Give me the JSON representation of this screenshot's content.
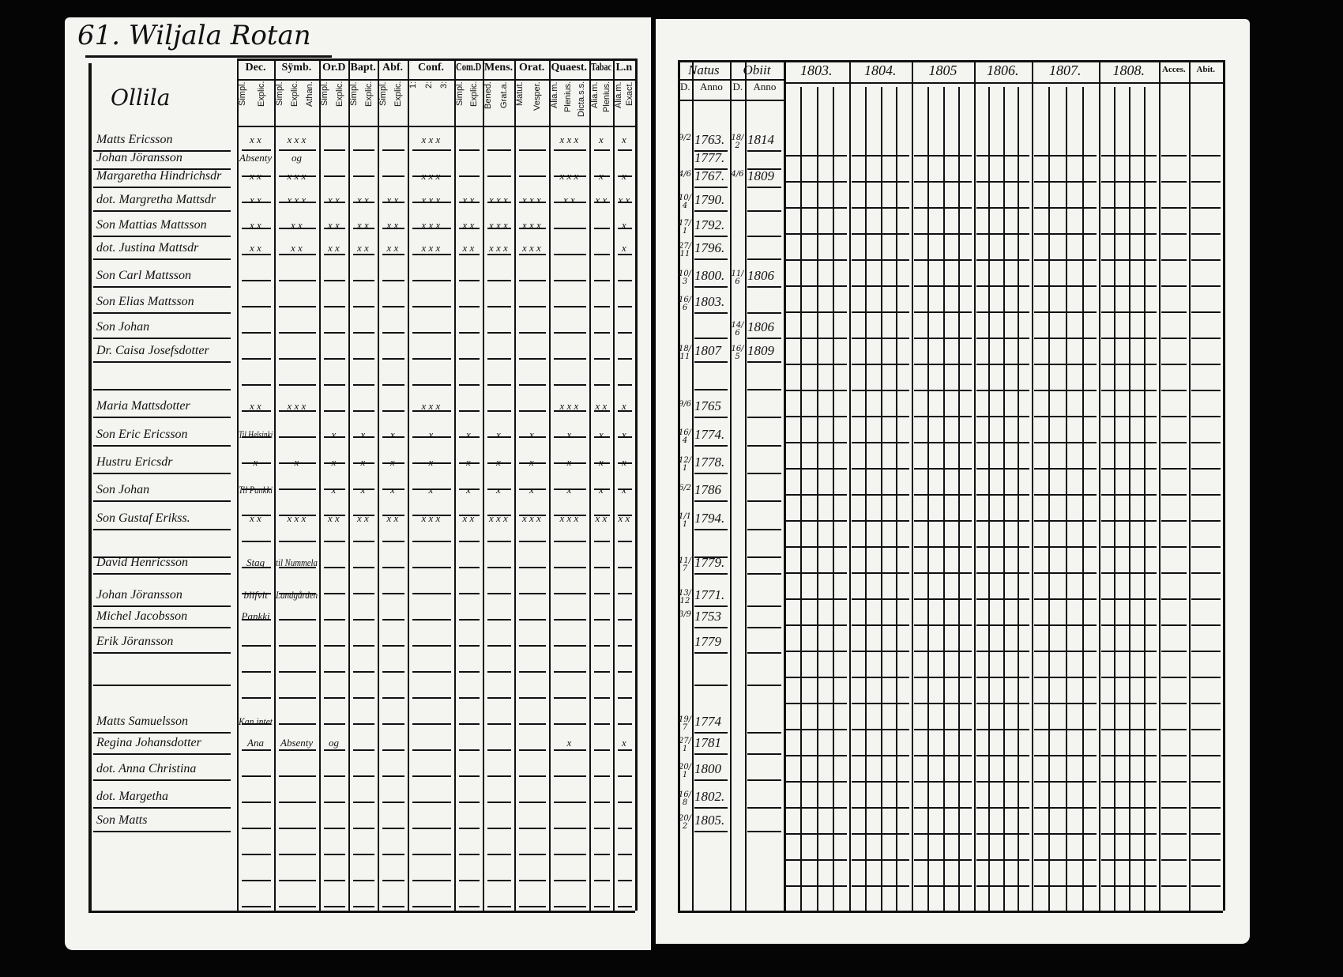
{
  "title": "61. Wiljala Rotan",
  "village": "Ollila",
  "left_headers": [
    {
      "label": "Dec.",
      "sub": [
        "Explic.",
        "Simpl."
      ]
    },
    {
      "label": "Sÿmb.",
      "sub": [
        "Athan.",
        "Explic.",
        "Simpl."
      ]
    },
    {
      "label": "Or.D",
      "sub": [
        "Explic.",
        "Simpl."
      ]
    },
    {
      "label": "Bapt.",
      "sub": [
        "Explic.",
        "Simpl."
      ]
    },
    {
      "label": "Abf.",
      "sub": [
        "Explic.",
        "Simpl."
      ]
    },
    {
      "label": "Conf.",
      "sub": [
        "3:",
        "2:",
        "1:"
      ]
    },
    {
      "label": "Com.D",
      "sub": [
        "Explic.",
        "Simpl."
      ]
    },
    {
      "label": "Mens.",
      "sub": [
        "Grat.a.",
        "Bened."
      ]
    },
    {
      "label": "Orat.",
      "sub": [
        "Vesper.",
        "Matut."
      ]
    },
    {
      "label": "Quaest.",
      "sub": [
        "Dicta.s.s.",
        "Plenius.",
        "Alia.m."
      ]
    },
    {
      "label": "Tabac",
      "sub": [
        "Plenius.",
        "Alia.m."
      ]
    },
    {
      "label": "L.n",
      "sub": [
        "Exact.",
        "Alia.m."
      ]
    }
  ],
  "right_headers": {
    "natus": "Natus",
    "obiit": "Obiit",
    "day": "D.",
    "anno": "Anno",
    "years": [
      "1803.",
      "1804.",
      "1805",
      "1806.",
      "1807.",
      "1808."
    ],
    "accessit": "Acces.",
    "abiit": "Abit."
  },
  "rows": [
    {
      "name": "Matts Ericsson",
      "bd": "9/2",
      "by": "1763.",
      "dd": "18/2",
      "dy": "1814",
      "marks": [
        "x x",
        "x x x",
        "",
        "",
        "",
        "x x x",
        "",
        "",
        "",
        "x x x",
        "x",
        "x"
      ]
    },
    {
      "name": "Johan Jöransson",
      "bd": "",
      "by": "1777.",
      "dd": "",
      "dy": "",
      "marks": [
        "Absenty",
        "og",
        "",
        "",
        "",
        "",
        "",
        "",
        "",
        "",
        "",
        ""
      ]
    },
    {
      "name": "Margaretha Hindrichsdr",
      "bd": "4/6",
      "by": "1767.",
      "dd": "4/6",
      "dy": "1809",
      "marks": [
        "x x",
        "x x x",
        "",
        "",
        "",
        "x x x",
        "",
        "",
        "",
        "x x x",
        "x",
        "x"
      ]
    },
    {
      "name": "dot. Margretha Mattsdr",
      "bd": "10/4",
      "by": "1790.",
      "dd": "",
      "dy": "",
      "marks": [
        "x x",
        "x x x",
        "x x",
        "x x",
        "x x",
        "x x x",
        "x x",
        "x x x",
        "x x x",
        "x x",
        "x x",
        "x x"
      ]
    },
    {
      "name": "Son Mattias Mattsson",
      "bd": "17/1",
      "by": "1792.",
      "dd": "",
      "dy": "",
      "marks": [
        "x x",
        "x x",
        "x x",
        "x x",
        "x x",
        "x x x",
        "x x",
        "x x x",
        "x x x",
        "",
        "",
        "x"
      ]
    },
    {
      "name": "dot. Justina Mattsdr",
      "bd": "27/11",
      "by": "1796.",
      "dd": "",
      "dy": "",
      "marks": [
        "x x",
        "x x",
        "x x",
        "x x",
        "x x",
        "x x x",
        "x x",
        "x x x",
        "x x x",
        "",
        "",
        "x"
      ]
    },
    {
      "name": "Son Carl Mattsson",
      "bd": "10/3",
      "by": "1800.",
      "dd": "11/6",
      "dy": "1806",
      "marks": []
    },
    {
      "name": "Son Elias Mattsson",
      "bd": "16/6",
      "by": "1803.",
      "dd": "",
      "dy": "",
      "marks": []
    },
    {
      "name": "Son Johan",
      "bd": "",
      "by": "",
      "dd": "14/6",
      "dy": "1806",
      "marks": []
    },
    {
      "name": "Dr. Caisa Josefsdotter",
      "bd": "18/11",
      "by": "1807",
      "dd": "16/5",
      "dy": "1809",
      "marks": []
    },
    {
      "name": "",
      "bd": "",
      "by": "",
      "dd": "",
      "dy": "",
      "marks": []
    },
    {
      "name": "Maria Mattsdotter",
      "bd": "9/6",
      "by": "1765",
      "dd": "",
      "dy": "",
      "marks": [
        "x x",
        "x x x",
        "",
        "",
        "",
        "x x x",
        "",
        "",
        "",
        "x x x",
        "x x",
        "x"
      ]
    },
    {
      "name": "Son Eric Ericsson",
      "bd": "16/4",
      "by": "1774.",
      "dd": "",
      "dy": "",
      "marks": [
        "Til Helsinki",
        "",
        "x",
        "x",
        "x",
        "x",
        "x",
        "x",
        "x",
        "x",
        "x",
        "x"
      ]
    },
    {
      "name": "Hustru Ericsdr",
      "bd": "12/1",
      "by": "1778.",
      "dd": "",
      "dy": "",
      "marks": [
        "x",
        "x",
        "x",
        "x",
        "x",
        "x",
        "x",
        "x",
        "x",
        "x",
        "x",
        "x"
      ]
    },
    {
      "name": "Son Johan",
      "bd": "6/2",
      "by": "1786",
      "dd": "",
      "dy": "",
      "marks": [
        "Til Pankki",
        "",
        "x",
        "x",
        "x",
        "x",
        "x",
        "x",
        "x",
        "x",
        "x",
        "x"
      ]
    },
    {
      "name": "Son Gustaf Erikss.",
      "bd": "1/11",
      "by": "1794.",
      "dd": "",
      "dy": "",
      "marks": [
        "x x",
        "x x x",
        "x x",
        "x x",
        "x x",
        "x x x",
        "x x",
        "x x x",
        "x x x",
        "x x x",
        "x x",
        "x x"
      ]
    },
    {
      "name": "",
      "bd": "",
      "by": "",
      "dd": "",
      "dy": "",
      "marks": []
    },
    {
      "name": "David Henricsson",
      "bd": "11/7",
      "by": "1779.",
      "dd": "",
      "dy": "",
      "marks": [
        "Stag",
        "til Nummela",
        "",
        "",
        "",
        "",
        "",
        "",
        "",
        "",
        "",
        ""
      ]
    },
    {
      "name": "Johan Jöransson",
      "bd": "13/12",
      "by": "1771.",
      "dd": "",
      "dy": "",
      "marks": [
        "blifvit",
        "Landgården",
        "",
        "",
        "",
        "",
        "",
        "",
        "",
        "",
        "",
        ""
      ]
    },
    {
      "name": "Michel Jacobsson",
      "bd": "3/9",
      "by": "1753",
      "dd": "",
      "dy": "",
      "marks": [
        "Pankki",
        "",
        "",
        "",
        "",
        "",
        "",
        "",
        "",
        "",
        "",
        ""
      ]
    },
    {
      "name": "Erik Jöransson",
      "bd": "",
      "by": "1779",
      "dd": "",
      "dy": "",
      "marks": []
    },
    {
      "name": "",
      "bd": "",
      "by": "",
      "dd": "",
      "dy": "",
      "marks": []
    },
    {
      "name": "Matts Samuelsson",
      "bd": "19/7",
      "by": "1774",
      "dd": "",
      "dy": "",
      "marks": [
        "Kan intet",
        "",
        "",
        "",
        "",
        "",
        "",
        "",
        "",
        "",
        "",
        ""
      ]
    },
    {
      "name": "Regina Johansdotter",
      "bd": "27/1",
      "by": "1781",
      "dd": "",
      "dy": "",
      "marks": [
        "Ana",
        "Absenty",
        "og",
        "",
        "",
        "",
        "",
        "",
        "",
        "x",
        "",
        "x"
      ]
    },
    {
      "name": "dot. Anna Christina",
      "bd": "20/1",
      "by": "1800",
      "dd": "",
      "dy": "",
      "marks": []
    },
    {
      "name": "dot. Margetha",
      "bd": "16/8",
      "by": "1802.",
      "dd": "",
      "dy": "",
      "marks": []
    },
    {
      "name": "Son Matts",
      "bd": "20/2",
      "by": "1805.",
      "dd": "",
      "dy": "",
      "marks": []
    }
  ]
}
